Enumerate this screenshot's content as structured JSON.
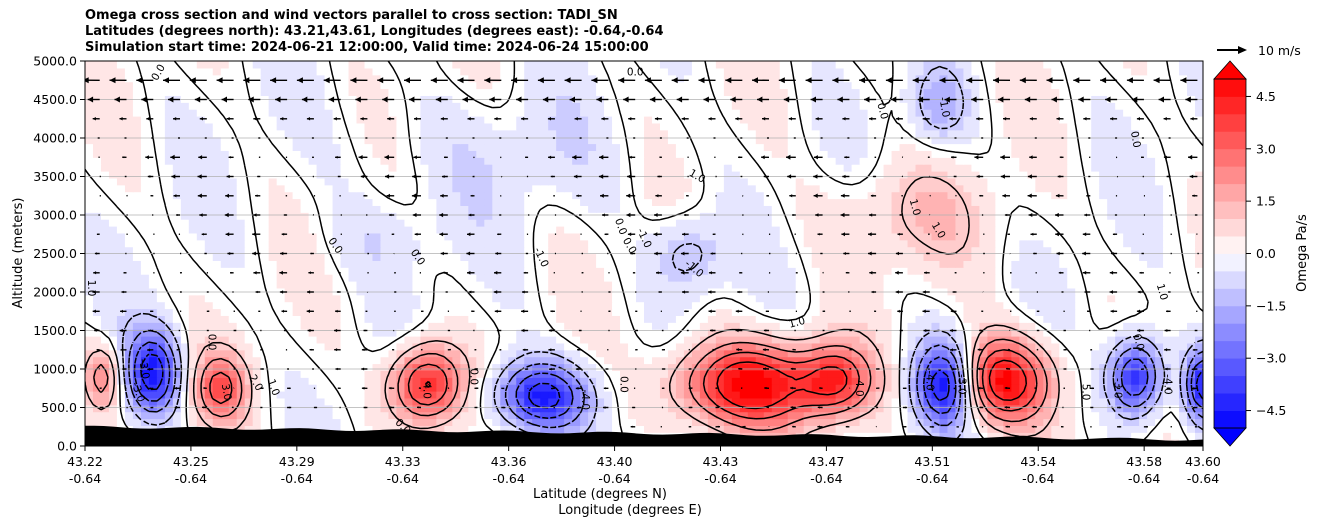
{
  "chart_data": {
    "type": "heatmap",
    "title_lines": [
      "Omega cross section and wind vectors parallel to cross section: TADI_SN",
      "Latitudes (degrees north): 43.21,43.61, Longitudes (degrees east): -0.64,-0.64",
      "Simulation start time: 2024-06-21 12:00:00, Valid time: 2024-06-24 15:00:00"
    ],
    "xlabel_line1": "Latitude (degrees N)",
    "xlabel_line2": "Longitude (degrees E)",
    "ylabel": "Altitude (meters)",
    "ylim": [
      0,
      5000
    ],
    "xlim": [
      43.22,
      43.6
    ],
    "x_ticks": [
      {
        "lat": "43.22",
        "lon": "-0.64",
        "value": 43.22
      },
      {
        "lat": "43.25",
        "lon": "-0.64",
        "value": 43.256
      },
      {
        "lat": "43.29",
        "lon": "-0.64",
        "value": 43.292
      },
      {
        "lat": "43.33",
        "lon": "-0.64",
        "value": 43.328
      },
      {
        "lat": "43.36",
        "lon": "-0.64",
        "value": 43.364
      },
      {
        "lat": "43.40",
        "lon": "-0.64",
        "value": 43.4
      },
      {
        "lat": "43.43",
        "lon": "-0.64",
        "value": 43.436
      },
      {
        "lat": "43.47",
        "lon": "-0.64",
        "value": 43.472
      },
      {
        "lat": "43.51",
        "lon": "-0.64",
        "value": 43.508
      },
      {
        "lat": "43.54",
        "lon": "-0.64",
        "value": 43.544
      },
      {
        "lat": "43.58",
        "lon": "-0.64",
        "value": 43.58
      },
      {
        "lat": "43.60",
        "lon": "-0.64",
        "value": 43.6
      }
    ],
    "y_ticks": [
      "0.0",
      "500.0",
      "1000.0",
      "1500.0",
      "2000.0",
      "2500.0",
      "3000.0",
      "3500.0",
      "4000.0",
      "4500.0",
      "5000.0"
    ],
    "y_tick_values": [
      0,
      500,
      1000,
      1500,
      2000,
      2500,
      3000,
      3500,
      4000,
      4500,
      5000
    ],
    "grid": "horizontal",
    "colorbar": {
      "label": "Omega Pa/s",
      "range": [
        -5,
        5
      ],
      "ticks": [
        "4.5",
        "3.0",
        "1.5",
        "0.0",
        "−1.5",
        "−3.0",
        "−4.5"
      ],
      "tick_values": [
        4.5,
        3.0,
        1.5,
        0.0,
        -1.5,
        -3.0,
        -4.5
      ],
      "extend": "both",
      "cmap": "bwr"
    },
    "quiver_key": "10 m/s",
    "cells": [
      {
        "x": 43.226,
        "y": 900,
        "v": 2.5,
        "r": 0.006,
        "h": 400
      },
      {
        "x": 43.243,
        "y": 950,
        "v": -4.5,
        "r": 0.009,
        "h": 550
      },
      {
        "x": 43.266,
        "y": 750,
        "v": 3.0,
        "r": 0.009,
        "h": 450
      },
      {
        "x": 43.336,
        "y": 800,
        "v": 4.5,
        "r": 0.012,
        "h": 500
      },
      {
        "x": 43.375,
        "y": 650,
        "v": -4.5,
        "r": 0.016,
        "h": 450
      },
      {
        "x": 43.445,
        "y": 800,
        "v": 5.0,
        "r": 0.024,
        "h": 550
      },
      {
        "x": 43.475,
        "y": 850,
        "v": 3.5,
        "r": 0.012,
        "h": 450
      },
      {
        "x": 43.512,
        "y": 800,
        "v": -5.0,
        "r": 0.01,
        "h": 550
      },
      {
        "x": 43.532,
        "y": 850,
        "v": 5.0,
        "r": 0.016,
        "h": 550
      },
      {
        "x": 43.577,
        "y": 900,
        "v": -4.5,
        "r": 0.009,
        "h": 500
      },
      {
        "x": 43.6,
        "y": 800,
        "v": -4.5,
        "r": 0.006,
        "h": 450
      },
      {
        "x": 43.425,
        "y": 2500,
        "v": -1.5,
        "r": 0.012,
        "h": 500
      },
      {
        "x": 43.5,
        "y": 3000,
        "v": 1.0,
        "r": 0.03,
        "h": 700
      },
      {
        "x": 43.51,
        "y": 4400,
        "v": -1.5,
        "r": 0.01,
        "h": 500
      },
      {
        "x": 43.32,
        "y": 2700,
        "v": -0.6,
        "r": 0.02,
        "h": 500
      },
      {
        "x": 43.36,
        "y": 3800,
        "v": -0.5,
        "r": 0.05,
        "h": 800
      }
    ],
    "contour_labels": [
      {
        "text": "0.0",
        "x": 43.245,
        "y": 4850,
        "rot": -60
      },
      {
        "text": "0.0",
        "x": 43.407,
        "y": 4850,
        "rot": 0
      },
      {
        "text": "0.0",
        "x": 43.491,
        "y": 4350,
        "rot": 75
      },
      {
        "text": "-1.0",
        "x": 43.512,
        "y": 4400,
        "rot": 80
      },
      {
        "text": "0.0",
        "x": 43.577,
        "y": 3980,
        "rot": 80
      },
      {
        "text": "1.0",
        "x": 43.428,
        "y": 3500,
        "rot": 30
      },
      {
        "text": "1.0",
        "x": 43.502,
        "y": 3100,
        "rot": 75
      },
      {
        "text": "1.0",
        "x": 43.51,
        "y": 2800,
        "rot": 60
      },
      {
        "text": "0.0",
        "x": 43.402,
        "y": 2850,
        "rot": 70
      },
      {
        "text": "0.0",
        "x": 43.405,
        "y": 2600,
        "rot": 60
      },
      {
        "text": "-1.0",
        "x": 43.41,
        "y": 2700,
        "rot": 65
      },
      {
        "text": "-1.0",
        "x": 43.375,
        "y": 2450,
        "rot": 65
      },
      {
        "text": "-1.0",
        "x": 43.427,
        "y": 2300,
        "rot": 40
      },
      {
        "text": "0.0",
        "x": 43.305,
        "y": 2600,
        "rot": 55
      },
      {
        "text": "0.0",
        "x": 43.333,
        "y": 2450,
        "rot": 55
      },
      {
        "text": "1.0",
        "x": 43.586,
        "y": 2000,
        "rot": 75
      },
      {
        "text": "1.0",
        "x": 43.222,
        "y": 2050,
        "rot": 90
      },
      {
        "text": "1.0",
        "x": 43.462,
        "y": 1600,
        "rot": -15
      },
      {
        "text": "0.0",
        "x": 43.578,
        "y": 1350,
        "rot": 75
      },
      {
        "text": "0.0",
        "x": 43.263,
        "y": 1350,
        "rot": 90
      },
      {
        "text": "-3.0",
        "x": 43.238,
        "y": 700,
        "rot": 70
      },
      {
        "text": "-3.0",
        "x": 43.24,
        "y": 1000,
        "rot": 80
      },
      {
        "text": "3.0",
        "x": 43.268,
        "y": 700,
        "rot": 80
      },
      {
        "text": "2.0",
        "x": 43.278,
        "y": 820,
        "rot": 60
      },
      {
        "text": "1.0",
        "x": 43.284,
        "y": 760,
        "rot": 70
      },
      {
        "text": "4.0",
        "x": 43.336,
        "y": 720,
        "rot": 90
      },
      {
        "text": "0.0",
        "x": 43.352,
        "y": 900,
        "rot": 90
      },
      {
        "text": "-4.0",
        "x": 43.39,
        "y": 600,
        "rot": 90
      },
      {
        "text": "0.0",
        "x": 43.403,
        "y": 800,
        "rot": 90
      },
      {
        "text": "4.0",
        "x": 43.483,
        "y": 750,
        "rot": 90
      },
      {
        "text": "-4.0",
        "x": 43.507,
        "y": 850,
        "rot": 90
      },
      {
        "text": "-3.0",
        "x": 43.518,
        "y": 800,
        "rot": 90
      },
      {
        "text": "5.0",
        "x": 43.56,
        "y": 700,
        "rot": 90
      },
      {
        "text": "-3.0",
        "x": 43.571,
        "y": 750,
        "rot": 90
      },
      {
        "text": "-4.0",
        "x": 43.588,
        "y": 800,
        "rot": 90
      },
      {
        "text": "0.0",
        "x": 43.328,
        "y": 250,
        "rot": 45
      }
    ]
  }
}
